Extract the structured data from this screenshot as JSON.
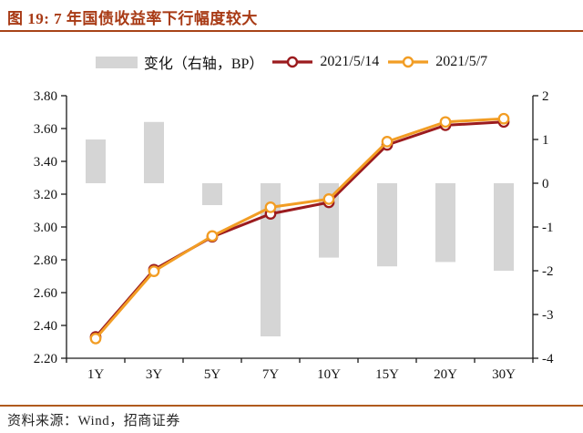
{
  "header": {
    "figure_title": "图 19: 7 年国债收益率下行幅度较大"
  },
  "footer": {
    "source": "资料来源：Wind，招商证券"
  },
  "colors": {
    "title_text": "#a83a15",
    "top_rule": "#a84418",
    "bottom_rule": "#b05a1e",
    "axis": "#1a1a1a",
    "axis_text": "#111111",
    "background": "#ffffff"
  },
  "chart_data": {
    "type": "bar+line combo",
    "categories": [
      "1Y",
      "3Y",
      "5Y",
      "7Y",
      "10Y",
      "15Y",
      "20Y",
      "30Y"
    ],
    "bar_series": {
      "name": "变化（右轴，BP）",
      "axis": "right",
      "color": "#d5d5d5",
      "values": [
        1.0,
        1.4,
        -0.5,
        -3.5,
        -1.7,
        -1.9,
        -1.8,
        -2.0
      ]
    },
    "line_series": [
      {
        "name": "2021/5/14",
        "axis": "left",
        "color": "#9b1b1e",
        "marker": "open-circle",
        "values": [
          2.33,
          2.74,
          2.94,
          3.08,
          3.15,
          3.5,
          3.62,
          3.64
        ]
      },
      {
        "name": "2021/5/7",
        "axis": "left",
        "color": "#f29d24",
        "marker": "open-circle",
        "values": [
          2.32,
          2.73,
          2.945,
          3.12,
          3.17,
          3.52,
          3.64,
          3.66
        ]
      }
    ],
    "left_axis": {
      "min": 2.2,
      "max": 3.8,
      "step": 0.2,
      "ticks": [
        "3.80",
        "3.60",
        "3.40",
        "3.20",
        "3.00",
        "2.80",
        "2.60",
        "2.40",
        "2.20"
      ]
    },
    "right_axis": {
      "min": -4,
      "max": 2,
      "step": 1,
      "ticks": [
        "2",
        "1",
        "0",
        "-1",
        "-2",
        "-3",
        "-4"
      ]
    },
    "legend_position": "top-center",
    "grid": false
  }
}
